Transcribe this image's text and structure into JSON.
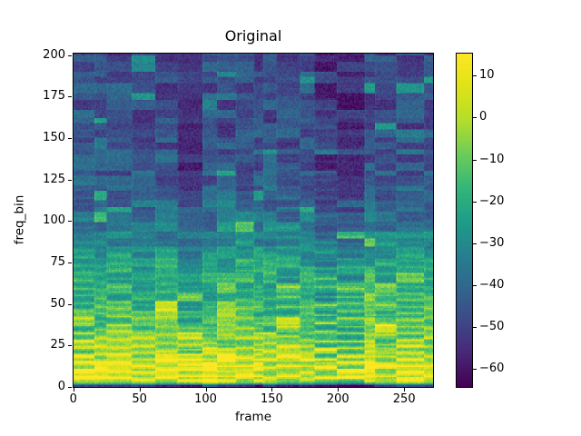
{
  "title": "Original",
  "axes": {
    "xlabel": "frame",
    "ylabel": "freq_bin",
    "x_range": [
      -0.5,
      272.5
    ],
    "y_range": [
      -0.5,
      201.5
    ],
    "x_ticks": [
      {
        "value": 0,
        "label": "0"
      },
      {
        "value": 50,
        "label": "50"
      },
      {
        "value": 100,
        "label": "100"
      },
      {
        "value": 150,
        "label": "150"
      },
      {
        "value": 200,
        "label": "200"
      },
      {
        "value": 250,
        "label": "250"
      }
    ],
    "y_ticks": [
      {
        "value": 0,
        "label": "0"
      },
      {
        "value": 25,
        "label": "25"
      },
      {
        "value": 50,
        "label": "50"
      },
      {
        "value": 75,
        "label": "75"
      },
      {
        "value": 100,
        "label": "100"
      },
      {
        "value": 125,
        "label": "125"
      },
      {
        "value": 150,
        "label": "150"
      },
      {
        "value": 175,
        "label": "175"
      },
      {
        "value": 200,
        "label": "200"
      }
    ]
  },
  "colorbar": {
    "vmin": -64.5,
    "vmax": 15.5,
    "ticks": [
      {
        "value": 10,
        "label": "10"
      },
      {
        "value": 0,
        "label": "0"
      },
      {
        "value": -10,
        "label": "−10"
      },
      {
        "value": -20,
        "label": "−20"
      },
      {
        "value": -30,
        "label": "−30"
      },
      {
        "value": -40,
        "label": "−40"
      },
      {
        "value": -50,
        "label": "−50"
      },
      {
        "value": -60,
        "label": "−60"
      }
    ]
  },
  "chart_data": {
    "type": "heatmap",
    "title": "Original",
    "xlabel": "frame",
    "ylabel": "freq_bin",
    "n_frames": 273,
    "n_bins": 202,
    "x_range": [
      0,
      272
    ],
    "y_range": [
      0,
      201
    ],
    "value_range_db": [
      -64.5,
      15.5
    ],
    "colormap": "viridis",
    "colormap_stops": [
      "#440154",
      "#482878",
      "#3e4a89",
      "#31688e",
      "#26828e",
      "#1f9e89",
      "#35b779",
      "#6dcd59",
      "#b4de2c",
      "#dfe318",
      "#fde725"
    ],
    "freq_profile_db": [
      [
        0,
        -36
      ],
      [
        1,
        -18
      ],
      [
        3,
        -5
      ],
      [
        8,
        0
      ],
      [
        14,
        -2
      ],
      [
        18,
        -5
      ],
      [
        24,
        -10
      ],
      [
        30,
        -13
      ],
      [
        38,
        -16
      ],
      [
        46,
        -20
      ],
      [
        54,
        -23
      ],
      [
        62,
        -25
      ],
      [
        70,
        -24
      ],
      [
        78,
        -28
      ],
      [
        86,
        -32
      ],
      [
        95,
        -36
      ],
      [
        105,
        -40
      ],
      [
        120,
        -44
      ],
      [
        140,
        -46
      ],
      [
        165,
        -48
      ],
      [
        201,
        -49
      ]
    ],
    "generator": {
      "seed": 42,
      "segment_len": [
        7,
        22
      ],
      "band_height": [
        3,
        7
      ],
      "block_jitter_db": 8,
      "noise_db": 4.5,
      "bright_dash_prob": 0.08,
      "bright_dash_boost_db": 16,
      "harmonic_boost_db": 30,
      "harmonic_decay": 0.09,
      "f0_range": [
        3,
        6.5
      ],
      "quiet_segment_prob": 0.15,
      "quiet_segment_drop_db": 7,
      "bottom_edge_drop_db": 20
    }
  }
}
